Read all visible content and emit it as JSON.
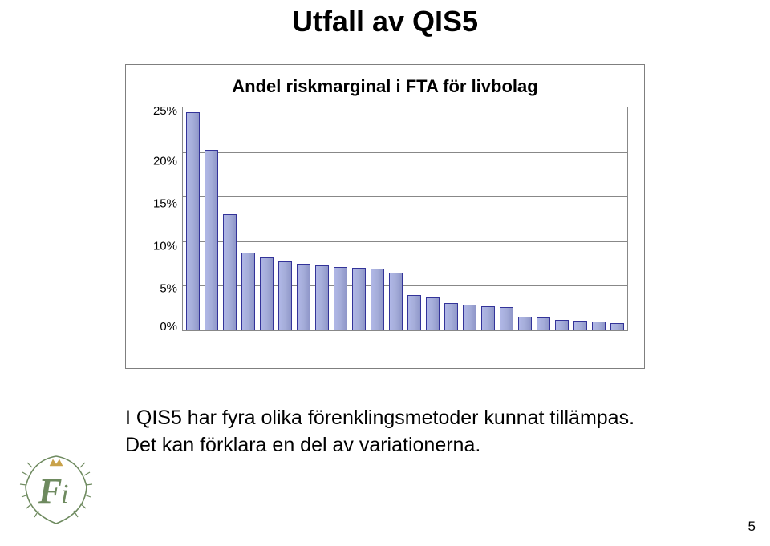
{
  "title": "Utfall av QIS5",
  "chart": {
    "type": "bar",
    "title": "Andel riskmarginal i FTA för livbolag",
    "title_fontsize": 22,
    "title_weight": 700,
    "ylim": [
      0,
      25
    ],
    "ytick_step": 5,
    "y_tick_labels": [
      "25%",
      "20%",
      "15%",
      "10%",
      "5%",
      "0%"
    ],
    "background_color": "#ffffff",
    "border_color": "#7f7f7f",
    "grid_color": "#888888",
    "bar_fill_left": "#b0b7e6",
    "bar_fill_mid": "#a5add9",
    "bar_fill_right": "#8f96c9",
    "bar_border_color": "#333399",
    "values": [
      24.5,
      20.2,
      13.0,
      8.7,
      8.2,
      7.7,
      7.5,
      7.3,
      7.1,
      7.0,
      6.9,
      6.5,
      4.0,
      3.7,
      3.1,
      2.9,
      2.7,
      2.6,
      1.5,
      1.4,
      1.2,
      1.1,
      1.0,
      0.8
    ]
  },
  "body_text": "I QIS5 har fyra olika förenklingsmetoder kunnat tillämpas. Det kan förklara en del av variationerna.",
  "page_number": "5",
  "logo": {
    "name": "finansinspektionen-logo",
    "colors": {
      "primary": "#6e8a5f",
      "accent": "#c9a24a"
    }
  }
}
